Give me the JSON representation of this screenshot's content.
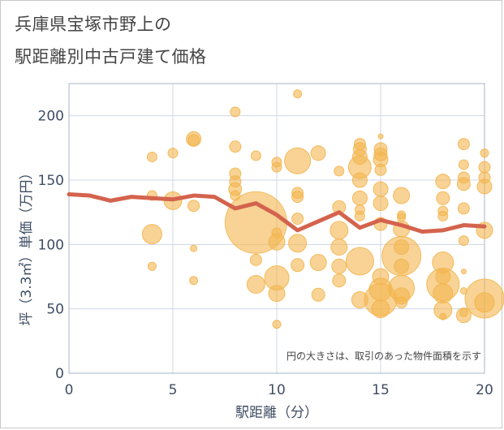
{
  "title_line1": "兵庫県宝塚市野上の",
  "title_line2": "駅距離別中古戸建て価格",
  "chart_data": {
    "type": "scatter",
    "xlabel": "駅距離（分）",
    "ylabel": "坪（3.3㎡）単価（万円）",
    "xlim": [
      0,
      20
    ],
    "ylim": [
      0,
      225
    ],
    "x_ticks": [
      0,
      5,
      10,
      15,
      20
    ],
    "y_ticks": [
      0,
      50,
      100,
      150,
      200
    ],
    "grid": true,
    "annotation": "円の大きさは、取引のあった物件面積を示す",
    "colors": {
      "bubble": "#f3b54f",
      "line": "#d4634d",
      "grid": "#cfd7e6",
      "plot_border": "#a8b4c8"
    },
    "trend_line": {
      "x": [
        0,
        1,
        2,
        3,
        4,
        5,
        6,
        7,
        8,
        9,
        10,
        11,
        12,
        13,
        14,
        15,
        16,
        17,
        18,
        19,
        20
      ],
      "y": [
        139,
        138,
        134,
        137,
        136,
        135,
        138,
        137,
        128,
        132,
        123,
        111,
        118,
        125,
        113,
        119,
        115,
        110,
        111,
        115,
        114
      ]
    },
    "bubbles": [
      {
        "x": 4,
        "y": 168,
        "r": 6
      },
      {
        "x": 4,
        "y": 138,
        "r": 6
      },
      {
        "x": 4,
        "y": 108,
        "r": 12
      },
      {
        "x": 4,
        "y": 83,
        "r": 5
      },
      {
        "x": 5,
        "y": 171,
        "r": 6
      },
      {
        "x": 5,
        "y": 134,
        "r": 11
      },
      {
        "x": 6,
        "y": 182,
        "r": 9
      },
      {
        "x": 6,
        "y": 181,
        "r": 7
      },
      {
        "x": 6,
        "y": 130,
        "r": 7
      },
      {
        "x": 6,
        "y": 97,
        "r": 4
      },
      {
        "x": 6,
        "y": 72,
        "r": 5
      },
      {
        "x": 8,
        "y": 203,
        "r": 6
      },
      {
        "x": 8,
        "y": 176,
        "r": 7
      },
      {
        "x": 8,
        "y": 155,
        "r": 7
      },
      {
        "x": 8,
        "y": 149,
        "r": 7
      },
      {
        "x": 8,
        "y": 143,
        "r": 8
      },
      {
        "x": 8,
        "y": 138,
        "r": 6
      },
      {
        "x": 9,
        "y": 169,
        "r": 6
      },
      {
        "x": 9,
        "y": 117,
        "r": 38
      },
      {
        "x": 9,
        "y": 88,
        "r": 7
      },
      {
        "x": 9,
        "y": 69,
        "r": 11
      },
      {
        "x": 10,
        "y": 164,
        "r": 6
      },
      {
        "x": 10,
        "y": 160,
        "r": 6
      },
      {
        "x": 10,
        "y": 109,
        "r": 6
      },
      {
        "x": 10,
        "y": 102,
        "r": 10
      },
      {
        "x": 10,
        "y": 74,
        "r": 15
      },
      {
        "x": 10,
        "y": 62,
        "r": 10
      },
      {
        "x": 10,
        "y": 38,
        "r": 5
      },
      {
        "x": 11,
        "y": 217,
        "r": 5
      },
      {
        "x": 11,
        "y": 165,
        "r": 16
      },
      {
        "x": 11,
        "y": 140,
        "r": 7
      },
      {
        "x": 11,
        "y": 137,
        "r": 7
      },
      {
        "x": 11,
        "y": 120,
        "r": 7
      },
      {
        "x": 11,
        "y": 101,
        "r": 11
      },
      {
        "x": 11,
        "y": 84,
        "r": 8
      },
      {
        "x": 12,
        "y": 171,
        "r": 9
      },
      {
        "x": 12,
        "y": 86,
        "r": 10
      },
      {
        "x": 12,
        "y": 61,
        "r": 8
      },
      {
        "x": 13,
        "y": 157,
        "r": 6
      },
      {
        "x": 13,
        "y": 129,
        "r": 8
      },
      {
        "x": 13,
        "y": 111,
        "r": 11
      },
      {
        "x": 13,
        "y": 98,
        "r": 10
      },
      {
        "x": 13,
        "y": 83,
        "r": 9
      },
      {
        "x": 13,
        "y": 72,
        "r": 8
      },
      {
        "x": 14,
        "y": 178,
        "r": 7
      },
      {
        "x": 14,
        "y": 174,
        "r": 8
      },
      {
        "x": 14,
        "y": 168,
        "r": 9
      },
      {
        "x": 14,
        "y": 160,
        "r": 14
      },
      {
        "x": 14,
        "y": 150,
        "r": 9
      },
      {
        "x": 14,
        "y": 136,
        "r": 9
      },
      {
        "x": 14,
        "y": 127,
        "r": 6
      },
      {
        "x": 14,
        "y": 122,
        "r": 6
      },
      {
        "x": 14,
        "y": 87,
        "r": 17
      },
      {
        "x": 14,
        "y": 57,
        "r": 10
      },
      {
        "x": 15,
        "y": 184,
        "r": 3
      },
      {
        "x": 15,
        "y": 174,
        "r": 8
      },
      {
        "x": 15,
        "y": 170,
        "r": 8
      },
      {
        "x": 15,
        "y": 166,
        "r": 9
      },
      {
        "x": 15,
        "y": 158,
        "r": 7
      },
      {
        "x": 15,
        "y": 143,
        "r": 9
      },
      {
        "x": 15,
        "y": 132,
        "r": 9
      },
      {
        "x": 15,
        "y": 116,
        "r": 8
      },
      {
        "x": 15,
        "y": 75,
        "r": 10
      },
      {
        "x": 15,
        "y": 65,
        "r": 14
      },
      {
        "x": 15,
        "y": 57,
        "r": 20
      },
      {
        "x": 15,
        "y": 50,
        "r": 11
      },
      {
        "x": 16,
        "y": 138,
        "r": 10
      },
      {
        "x": 16,
        "y": 123,
        "r": 5
      },
      {
        "x": 16,
        "y": 121,
        "r": 5
      },
      {
        "x": 16,
        "y": 112,
        "r": 10
      },
      {
        "x": 16,
        "y": 98,
        "r": 9
      },
      {
        "x": 16,
        "y": 91,
        "r": 24
      },
      {
        "x": 16,
        "y": 83,
        "r": 9
      },
      {
        "x": 16,
        "y": 66,
        "r": 16
      },
      {
        "x": 16,
        "y": 60,
        "r": 10
      },
      {
        "x": 16,
        "y": 55,
        "r": 7
      },
      {
        "x": 18,
        "y": 149,
        "r": 9
      },
      {
        "x": 18,
        "y": 136,
        "r": 8
      },
      {
        "x": 18,
        "y": 126,
        "r": 6
      },
      {
        "x": 18,
        "y": 122,
        "r": 6
      },
      {
        "x": 18,
        "y": 86,
        "r": 13
      },
      {
        "x": 18,
        "y": 75,
        "r": 9
      },
      {
        "x": 18,
        "y": 69,
        "r": 20
      },
      {
        "x": 18,
        "y": 62,
        "r": 12
      },
      {
        "x": 18,
        "y": 49,
        "r": 11
      },
      {
        "x": 18,
        "y": 44,
        "r": 4
      },
      {
        "x": 19,
        "y": 178,
        "r": 7
      },
      {
        "x": 19,
        "y": 162,
        "r": 6
      },
      {
        "x": 19,
        "y": 152,
        "r": 7
      },
      {
        "x": 19,
        "y": 147,
        "r": 8
      },
      {
        "x": 19,
        "y": 128,
        "r": 7
      },
      {
        "x": 19,
        "y": 103,
        "r": 6
      },
      {
        "x": 19,
        "y": 79,
        "r": 3
      },
      {
        "x": 19,
        "y": 64,
        "r": 4
      },
      {
        "x": 19,
        "y": 47,
        "r": 5
      },
      {
        "x": 19,
        "y": 45,
        "r": 9
      },
      {
        "x": 20,
        "y": 171,
        "r": 5
      },
      {
        "x": 20,
        "y": 160,
        "r": 7
      },
      {
        "x": 20,
        "y": 152,
        "r": 7
      },
      {
        "x": 20,
        "y": 145,
        "r": 9
      },
      {
        "x": 20,
        "y": 111,
        "r": 10
      },
      {
        "x": 20,
        "y": 58,
        "r": 24
      },
      {
        "x": 20,
        "y": 55,
        "r": 12
      }
    ]
  }
}
